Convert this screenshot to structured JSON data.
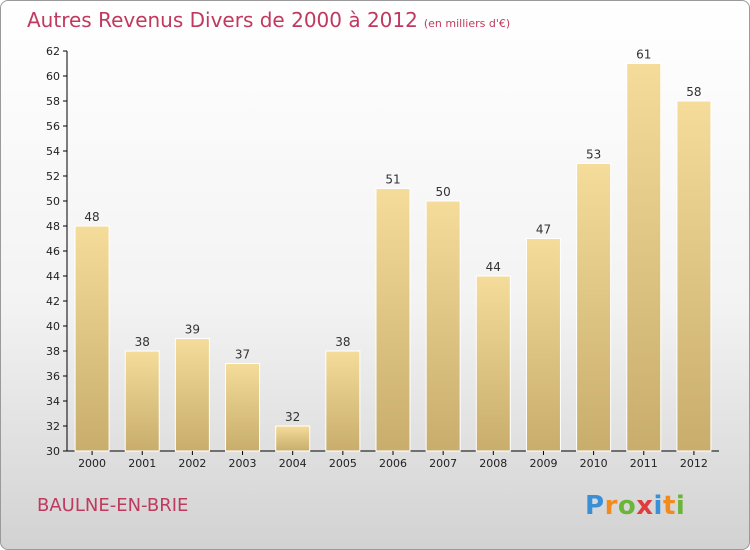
{
  "title": "Autres Revenus Divers de 2000 à 2012",
  "subtitle": "(en milliers d'€)",
  "commune": "BAULNE-EN-BRIE",
  "logo": {
    "letters": [
      "P",
      "r",
      "o",
      "x",
      "i",
      "t",
      "i"
    ],
    "colors": [
      "#3a8fd6",
      "#f28a1d",
      "#6bb53b",
      "#e23b3b",
      "#3a8fd6",
      "#f28a1d",
      "#6bb53b"
    ]
  },
  "colors": {
    "title": "#c0395e",
    "bar_light": "#f5dc9a",
    "bar_dark": "#c8ad6c",
    "axis": "#000000",
    "grid": "#bbbbbb"
  },
  "chart_data": {
    "type": "bar",
    "categories": [
      "2000",
      "2001",
      "2002",
      "2003",
      "2004",
      "2005",
      "2006",
      "2007",
      "2008",
      "2009",
      "2010",
      "2011",
      "2012"
    ],
    "values": [
      48,
      38,
      39,
      37,
      32,
      38,
      51,
      50,
      44,
      47,
      53,
      61,
      58
    ],
    "ylim": [
      30,
      62
    ],
    "yticks": [
      30,
      32,
      34,
      36,
      38,
      40,
      42,
      44,
      46,
      48,
      50,
      52,
      54,
      56,
      58,
      60,
      62
    ],
    "grid": false,
    "data_labels": true
  }
}
